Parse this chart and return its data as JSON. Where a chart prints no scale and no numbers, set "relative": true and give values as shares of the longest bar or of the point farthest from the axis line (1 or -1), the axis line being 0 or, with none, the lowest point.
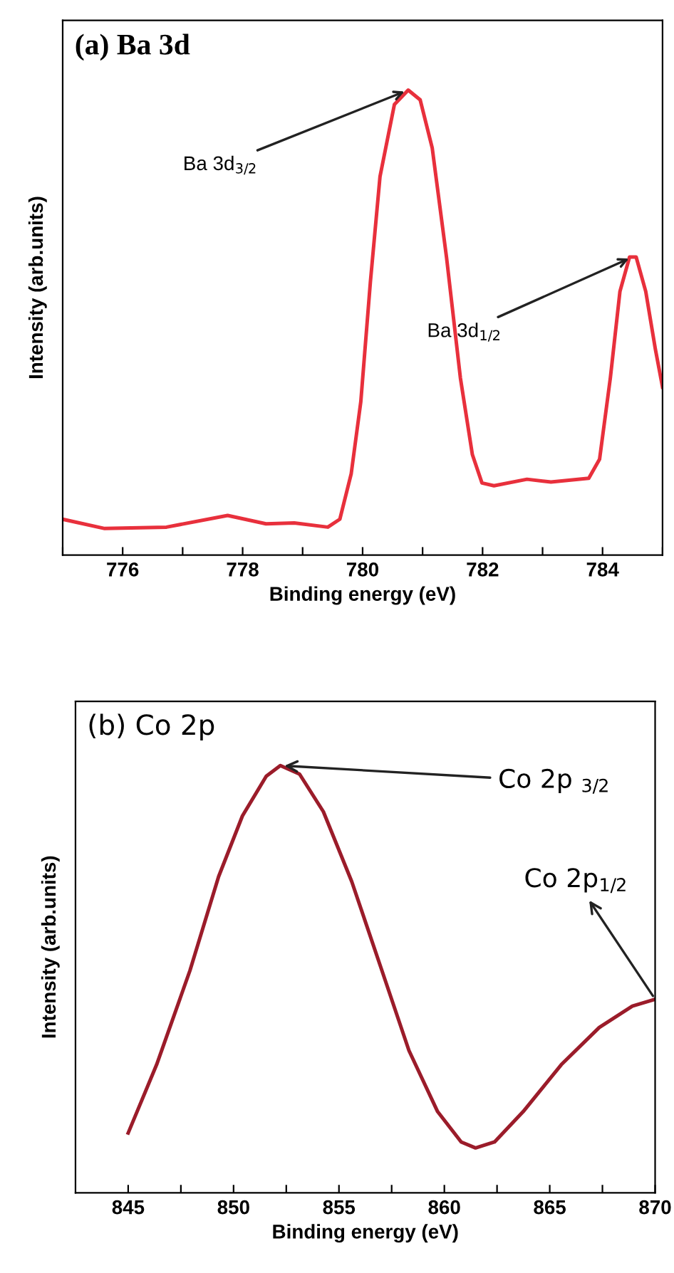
{
  "chart_data": [
    {
      "type": "line",
      "title": "(a) Ba 3d",
      "xlabel": "Binding energy (eV)",
      "ylabel": "Intensity (arb.units)",
      "relative": true,
      "tick_labels": "x",
      "grid": false,
      "marker": "none",
      "line_style": "solid",
      "xlim": [
        775,
        785
      ],
      "xticks": [
        {
          "value": 775,
          "label": null
        },
        776,
        {
          "value": 777,
          "label": null
        },
        778,
        {
          "value": 779,
          "label": null
        },
        780,
        {
          "value": 781,
          "label": null
        },
        782,
        {
          "value": 783,
          "label": null
        },
        784,
        {
          "value": 785,
          "label": null
        }
      ],
      "annotations": [
        {
          "text": "Ba 3d$_{3/2}$",
          "x": 780.76,
          "y": 1.0
        },
        {
          "text": "Ba 3d$_{1/2}$",
          "x": 784.5,
          "y": 0.641
        }
      ],
      "series": [
        {
          "color": "#e8303c",
          "x": [
            775.0,
            775.7,
            776.73,
            777.75,
            778.39,
            778.86,
            779.42,
            779.62,
            779.81,
            779.97,
            780.13,
            780.29,
            780.53,
            780.76,
            780.96,
            781.16,
            781.4,
            781.63,
            781.83,
            781.99,
            782.19,
            782.74,
            783.14,
            783.77,
            783.95,
            784.13,
            784.29,
            784.45,
            784.56,
            784.72,
            784.88,
            785.0
          ],
          "values": [
            0.077,
            0.057,
            0.06,
            0.085,
            0.067,
            0.069,
            0.06,
            0.077,
            0.175,
            0.33,
            0.588,
            0.814,
            0.969,
            1.0,
            0.979,
            0.876,
            0.639,
            0.381,
            0.216,
            0.155,
            0.149,
            0.163,
            0.157,
            0.165,
            0.206,
            0.381,
            0.567,
            0.641,
            0.641,
            0.567,
            0.443,
            0.361
          ]
        }
      ]
    },
    {
      "type": "line",
      "title": "(b) Co 2p",
      "xlabel": "Binding energy (eV)",
      "ylabel": "Intensity (arb.units)",
      "relative": true,
      "tick_labels": "x",
      "grid": false,
      "marker": "none",
      "line_style": "solid",
      "xlim": [
        842.5,
        870
      ],
      "xticks": [
        845,
        {
          "value": 847.5,
          "label": null
        },
        850,
        {
          "value": 852.5,
          "label": null
        },
        855,
        {
          "value": 857.5,
          "label": null
        },
        860,
        {
          "value": 862.5,
          "label": null
        },
        865,
        {
          "value": 867.5,
          "label": null
        },
        870
      ],
      "annotations": [
        {
          "text": "Co 2p $_{3/2}$",
          "x": 852.22,
          "y": 1.0
        },
        {
          "text": "Co 2p$_{1/2}$",
          "x": 870,
          "y": 0.453
        }
      ],
      "series": [
        {
          "color": "#9b1c2a",
          "x": [
            845,
            846.35,
            847.93,
            849.29,
            850.42,
            851.55,
            852.22,
            853.13,
            854.26,
            855.61,
            856.97,
            858.32,
            859.68,
            860.8,
            861.48,
            862.38,
            863.74,
            865.55,
            867.35,
            868.92,
            870
          ],
          "values": [
            0.14,
            0.3,
            0.52,
            0.74,
            0.882,
            0.975,
            1.0,
            0.98,
            0.892,
            0.728,
            0.53,
            0.333,
            0.19,
            0.119,
            0.105,
            0.119,
            0.19,
            0.3,
            0.387,
            0.437,
            0.453
          ]
        }
      ]
    }
  ]
}
